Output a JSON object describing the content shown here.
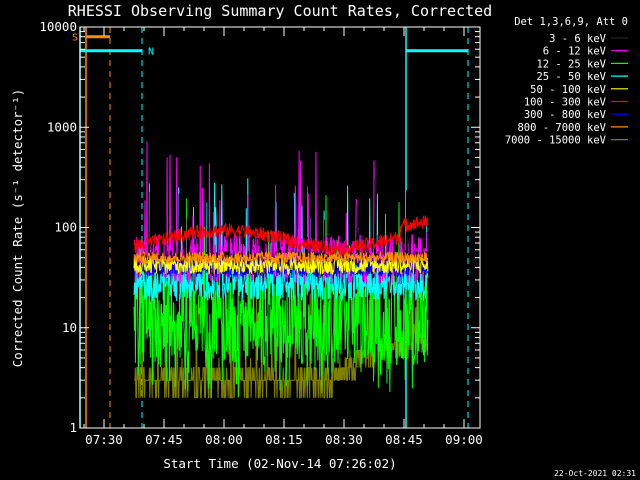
{
  "chart_data": {
    "type": "line",
    "title": "RHESSI Observing Summary Count Rates, Corrected",
    "xlabel": "Start Time (02-Nov-14 07:26:02)",
    "ylabel": "Corrected Count Rate (s⁻¹ detector⁻¹)",
    "yscale": "log",
    "ylim": [
      1,
      10000
    ],
    "xlim_minutes_after_0726": [
      -2,
      98
    ],
    "y_ticks": [
      {
        "value": 1,
        "label": "1"
      },
      {
        "value": 10,
        "label": "10"
      },
      {
        "value": 100,
        "label": "100"
      },
      {
        "value": 1000,
        "label": "1000"
      },
      {
        "value": 10000,
        "label": "10000"
      }
    ],
    "x_ticks": [
      {
        "minute": 4,
        "label": "07:30"
      },
      {
        "minute": 19,
        "label": "07:45"
      },
      {
        "minute": 34,
        "label": "08:00"
      },
      {
        "minute": 49,
        "label": "08:15"
      },
      {
        "minute": 64,
        "label": "08:30"
      },
      {
        "minute": 79,
        "label": "08:45"
      },
      {
        "minute": 94,
        "label": "09:00"
      }
    ],
    "legend_header": "Det 1,3,6,9, Att 0",
    "legend_position": "top-right, outside plot",
    "data_range_minutes": [
      11.5,
      85
    ],
    "series": [
      {
        "name": "3 - 6 keV",
        "color": "#000000",
        "level": 45,
        "noise": 0.12
      },
      {
        "name": "6 - 12 keV",
        "color": "#ff00ff",
        "level": 48,
        "noise": 0.25
      },
      {
        "name": "12 - 25 keV",
        "color": "#00ff00",
        "level": 12,
        "noise": 0.45
      },
      {
        "name": "25 - 50 keV",
        "color": "#00ffff",
        "level": 28,
        "noise": 0.18
      },
      {
        "name": "50 - 100 keV",
        "color": "#ffff00",
        "level": 42,
        "noise": 0.09
      },
      {
        "name": "100 - 300 keV",
        "color": "#ff0000",
        "level": 78,
        "noise": 0.07
      },
      {
        "name": "300 - 800 keV",
        "color": "#0000ff",
        "level": 40,
        "noise": 0.1
      },
      {
        "name": "800 - 7000 keV",
        "color": "#ff8c00",
        "level": 50,
        "noise": 0.06
      },
      {
        "name": "7000 - 15000 keV",
        "color": "#808000",
        "level": 3,
        "noise": 0.15
      }
    ],
    "annotations": [
      {
        "label": "S",
        "color": "#ff8c00"
      },
      {
        "label": "N",
        "color": "#00ffff"
      }
    ]
  },
  "footer": {
    "date_stamp": "22-Oct-2021 02:31"
  }
}
